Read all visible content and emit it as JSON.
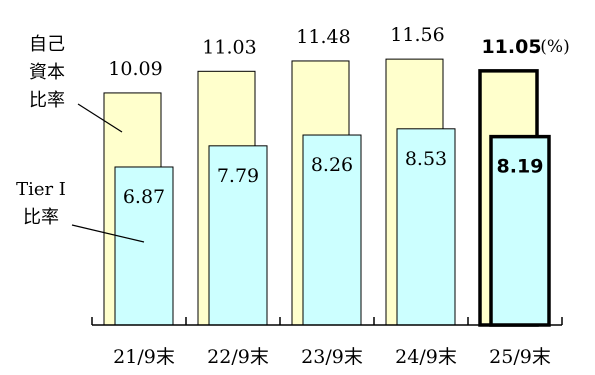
{
  "chart_data": {
    "type": "bar",
    "categories": [
      "21/9末",
      "22/9末",
      "23/9末",
      "24/9末",
      "25/9末"
    ],
    "series": [
      {
        "name": "自己資本比率",
        "values": [
          10.09,
          11.03,
          11.48,
          11.56,
          11.05
        ],
        "color": "#FFFFCC"
      },
      {
        "name": "Tier I 比率",
        "values": [
          6.87,
          7.79,
          8.26,
          8.53,
          8.19
        ],
        "color": "#CCFFFF"
      }
    ],
    "value_labels": {
      "equity_ratio": [
        "10.09",
        "11.03",
        "11.48",
        "11.56",
        "11.05"
      ],
      "tier1_ratio": [
        "6.87",
        "7.79",
        "8.26",
        "8.53",
        "8.19"
      ]
    },
    "highlighted_category_index": 4,
    "unit": "(%)",
    "series_labels": {
      "equity_ratio_lines": [
        "自己",
        "資本",
        "比率"
      ],
      "tier1_ratio_lines": [
        "Tier I",
        "比率"
      ]
    },
    "grid": false,
    "legend": "none"
  }
}
